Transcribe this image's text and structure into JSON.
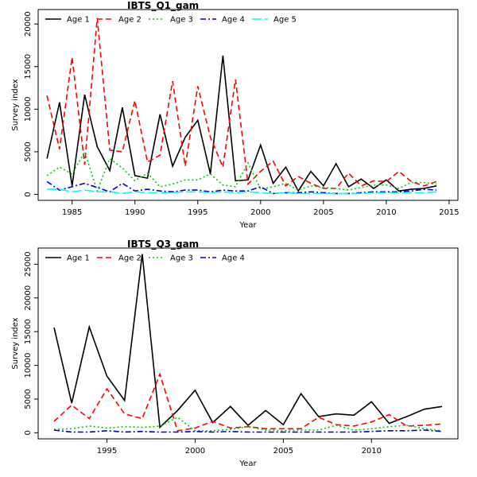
{
  "chart_data": [
    {
      "type": "line",
      "title": "IBTS_Q1_gam",
      "xlabel": "Year",
      "ylabel": "Survey index",
      "xlim": [
        1982.3,
        2015.7
      ],
      "ylim": [
        -700,
        21700
      ],
      "xticks": [
        1985,
        1990,
        1995,
        2000,
        2005,
        2010,
        2015
      ],
      "yticks": [
        0,
        5000,
        10000,
        15000,
        20000
      ],
      "legend": "top-left",
      "x": [
        1983,
        1984,
        1985,
        1986,
        1987,
        1988,
        1989,
        1990,
        1991,
        1992,
        1993,
        1994,
        1995,
        1996,
        1997,
        1998,
        1999,
        2000,
        2001,
        2002,
        2003,
        2004,
        2005,
        2006,
        2007,
        2008,
        2009,
        2010,
        2011,
        2012,
        2013,
        2014
      ],
      "series": [
        {
          "name": "Age 1",
          "color": "#000000",
          "dash": "",
          "values": [
            4200,
            10800,
            1000,
            11700,
            5600,
            2800,
            10200,
            2200,
            1900,
            9400,
            3300,
            6700,
            8700,
            2400,
            16300,
            1600,
            1700,
            5800,
            1300,
            3200,
            400,
            2700,
            1000,
            3600,
            900,
            1800,
            700,
            1700,
            400,
            600,
            700,
            1000
          ]
        },
        {
          "name": "Age 2",
          "color": "#ff0000",
          "dash": "7,4",
          "values": [
            11600,
            5300,
            16100,
            3500,
            20700,
            5200,
            5000,
            11000,
            3800,
            4600,
            13300,
            3300,
            12700,
            6700,
            3200,
            13500,
            1200,
            2700,
            3900,
            1000,
            2100,
            1300,
            700,
            700,
            2500,
            1000,
            1600,
            1500,
            2700,
            1500,
            1000,
            1500
          ]
        },
        {
          "name": "Age 3",
          "color": "#00cc00",
          "dash": "2,3",
          "values": [
            2200,
            3200,
            2400,
            5000,
            400,
            4200,
            3100,
            1600,
            2500,
            900,
            1200,
            1700,
            1700,
            2400,
            1100,
            900,
            3700,
            600,
            900,
            1300,
            500,
            1000,
            800,
            700,
            500,
            800,
            1100,
            1100,
            700,
            1400,
            1400,
            1200
          ]
        },
        {
          "name": "Age 4",
          "color": "#0000cc",
          "dash": "7,3,2,3",
          "values": [
            1500,
            500,
            900,
            1300,
            800,
            300,
            1300,
            400,
            600,
            400,
            300,
            500,
            500,
            300,
            500,
            400,
            400,
            900,
            100,
            200,
            200,
            300,
            200,
            100,
            100,
            200,
            300,
            300,
            300,
            400,
            600,
            500
          ]
        },
        {
          "name": "Age 5",
          "color": "#00ffff",
          "dash": "12,4",
          "values": [
            600,
            600,
            300,
            500,
            300,
            300,
            100,
            300,
            200,
            200,
            200,
            300,
            300,
            200,
            300,
            200,
            300,
            200,
            100,
            200,
            100,
            100,
            100,
            100,
            100,
            100,
            200,
            200,
            200,
            200,
            200,
            300
          ]
        }
      ]
    },
    {
      "type": "line",
      "title": "IBTS_Q3_gam",
      "xlabel": "Year",
      "ylabel": "Survey index",
      "xlim": [
        1991.1,
        2014.9
      ],
      "ylim": [
        -900,
        27400
      ],
      "xticks": [
        1995,
        2000,
        2005,
        2010
      ],
      "yticks": [
        0,
        5000,
        10000,
        15000,
        20000,
        25000
      ],
      "legend": "top-left",
      "x": [
        1992,
        1993,
        1994,
        1995,
        1996,
        1997,
        1998,
        1999,
        2000,
        2001,
        2002,
        2003,
        2004,
        2005,
        2006,
        2007,
        2008,
        2009,
        2010,
        2011,
        2012,
        2013,
        2014
      ],
      "series": [
        {
          "name": "Age 1",
          "color": "#000000",
          "dash": "",
          "values": [
            15600,
            4400,
            15700,
            8400,
            4800,
            26500,
            800,
            3300,
            6300,
            1500,
            3900,
            1100,
            3300,
            1200,
            5800,
            2400,
            2800,
            2600,
            4600,
            1400,
            2400,
            3500,
            3900
          ]
        },
        {
          "name": "Age 2",
          "color": "#ff0000",
          "dash": "7,4",
          "values": [
            1700,
            4100,
            2100,
            6500,
            2800,
            2100,
            8700,
            300,
            700,
            1700,
            700,
            900,
            600,
            600,
            600,
            2300,
            1200,
            1000,
            1600,
            2700,
            1000,
            1100,
            1300
          ]
        },
        {
          "name": "Age 3",
          "color": "#00cc00",
          "dash": "2,3",
          "values": [
            500,
            600,
            1000,
            700,
            900,
            800,
            1000,
            2300,
            300,
            300,
            500,
            900,
            400,
            300,
            400,
            400,
            1100,
            400,
            600,
            900,
            1100,
            600,
            300
          ]
        },
        {
          "name": "Age 4",
          "color": "#0000cc",
          "dash": "7,3,2,3",
          "values": [
            400,
            100,
            100,
            300,
            100,
            200,
            100,
            100,
            200,
            100,
            200,
            100,
            100,
            100,
            100,
            100,
            100,
            100,
            200,
            300,
            300,
            400,
            200
          ]
        }
      ]
    }
  ]
}
